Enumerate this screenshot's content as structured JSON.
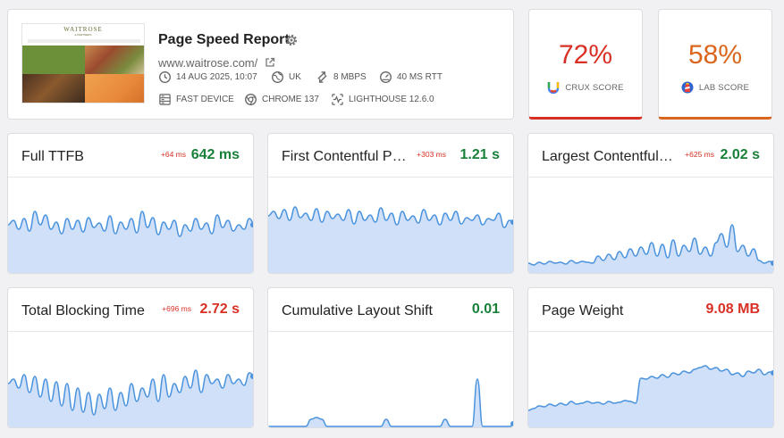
{
  "report": {
    "title": "Page Speed Report",
    "url": "www.waitrose.com/",
    "thumbnail": {
      "logo": "WAITROSE",
      "logo_sub": "& PARTNERS"
    },
    "meta": {
      "date": "14 AUG 2025, 10:07",
      "location": "UK",
      "bandwidth": "8 MBPS",
      "rtt": "40 MS RTT",
      "device": "FAST DEVICE",
      "browser": "CHROME 137",
      "lighthouse": "LIGHTHOUSE 12.6.0"
    }
  },
  "scores": {
    "crux": {
      "value": "72%",
      "label": "CRUX SCORE",
      "color": "#d93025"
    },
    "lab": {
      "value": "58%",
      "label": "LAB SCORE",
      "color": "#d9661c"
    }
  },
  "metrics": [
    {
      "name": "Full TTFB",
      "delta": "+64 ms",
      "value": "642 ms",
      "status": "green",
      "trend": [
        0.55,
        0.6,
        0.5,
        0.62,
        0.48,
        0.7,
        0.55,
        0.66,
        0.5,
        0.58,
        0.45,
        0.62,
        0.5,
        0.6,
        0.47,
        0.63,
        0.52,
        0.57,
        0.48,
        0.65,
        0.45,
        0.58,
        0.5,
        0.62,
        0.46,
        0.7,
        0.52,
        0.63,
        0.44,
        0.58,
        0.5,
        0.6,
        0.42,
        0.55,
        0.48,
        0.62,
        0.5,
        0.57,
        0.45,
        0.66,
        0.52,
        0.6,
        0.48,
        0.55,
        0.5,
        0.62,
        0.55
      ]
    },
    {
      "name": "First Contentful Paint",
      "delta": "+303 ms",
      "value": "1.21 s",
      "status": "green",
      "trend": [
        0.65,
        0.7,
        0.62,
        0.72,
        0.6,
        0.75,
        0.63,
        0.68,
        0.6,
        0.73,
        0.58,
        0.7,
        0.62,
        0.67,
        0.6,
        0.72,
        0.56,
        0.7,
        0.6,
        0.66,
        0.58,
        0.74,
        0.6,
        0.68,
        0.55,
        0.7,
        0.6,
        0.65,
        0.57,
        0.72,
        0.6,
        0.66,
        0.55,
        0.68,
        0.6,
        0.7,
        0.56,
        0.63,
        0.6,
        0.66,
        0.55,
        0.62,
        0.6,
        0.68,
        0.52,
        0.6,
        0.58
      ]
    },
    {
      "name": "Largest Contentful Paint",
      "delta": "+625 ms",
      "value": "2.02 s",
      "status": "green",
      "trend": [
        0.12,
        0.1,
        0.13,
        0.11,
        0.14,
        0.12,
        0.13,
        0.11,
        0.15,
        0.12,
        0.14,
        0.13,
        0.12,
        0.2,
        0.15,
        0.22,
        0.16,
        0.25,
        0.18,
        0.28,
        0.2,
        0.3,
        0.22,
        0.35,
        0.2,
        0.33,
        0.18,
        0.38,
        0.2,
        0.32,
        0.25,
        0.4,
        0.22,
        0.3,
        0.2,
        0.35,
        0.45,
        0.3,
        0.55,
        0.25,
        0.32,
        0.2,
        0.28,
        0.15,
        0.12,
        0.14,
        0.12
      ]
    },
    {
      "name": "Total Blocking Time",
      "delta": "+696 ms",
      "value": "2.72 s",
      "status": "red",
      "trend": [
        0.5,
        0.55,
        0.45,
        0.6,
        0.4,
        0.58,
        0.35,
        0.55,
        0.3,
        0.52,
        0.25,
        0.5,
        0.2,
        0.45,
        0.18,
        0.4,
        0.15,
        0.38,
        0.22,
        0.45,
        0.2,
        0.4,
        0.25,
        0.5,
        0.3,
        0.45,
        0.35,
        0.55,
        0.3,
        0.6,
        0.35,
        0.5,
        0.4,
        0.58,
        0.45,
        0.65,
        0.4,
        0.6,
        0.5,
        0.55,
        0.45,
        0.6,
        0.5,
        0.55,
        0.48,
        0.62,
        0.58
      ]
    },
    {
      "name": "Cumulative Layout Shift",
      "delta": "",
      "value": "0.01",
      "status": "green",
      "trend": [
        0.02,
        0.02,
        0.02,
        0.02,
        0.02,
        0.02,
        0.02,
        0.02,
        0.1,
        0.12,
        0.1,
        0.02,
        0.02,
        0.02,
        0.02,
        0.02,
        0.02,
        0.02,
        0.02,
        0.02,
        0.02,
        0.02,
        0.1,
        0.02,
        0.02,
        0.02,
        0.02,
        0.02,
        0.02,
        0.02,
        0.02,
        0.02,
        0.02,
        0.1,
        0.02,
        0.02,
        0.02,
        0.02,
        0.02,
        0.55,
        0.02,
        0.02,
        0.02,
        0.02,
        0.02,
        0.02,
        0.05
      ]
    },
    {
      "name": "Page Weight",
      "delta": "",
      "value": "9.08 MB",
      "status": "red",
      "trend": [
        0.2,
        0.22,
        0.25,
        0.24,
        0.27,
        0.25,
        0.28,
        0.26,
        0.3,
        0.27,
        0.28,
        0.3,
        0.28,
        0.29,
        0.27,
        0.3,
        0.28,
        0.29,
        0.31,
        0.3,
        0.28,
        0.56,
        0.55,
        0.58,
        0.56,
        0.6,
        0.57,
        0.62,
        0.6,
        0.64,
        0.62,
        0.66,
        0.68,
        0.7,
        0.66,
        0.68,
        0.64,
        0.66,
        0.6,
        0.62,
        0.58,
        0.64,
        0.62,
        0.66,
        0.6,
        0.63,
        0.62
      ]
    }
  ]
}
